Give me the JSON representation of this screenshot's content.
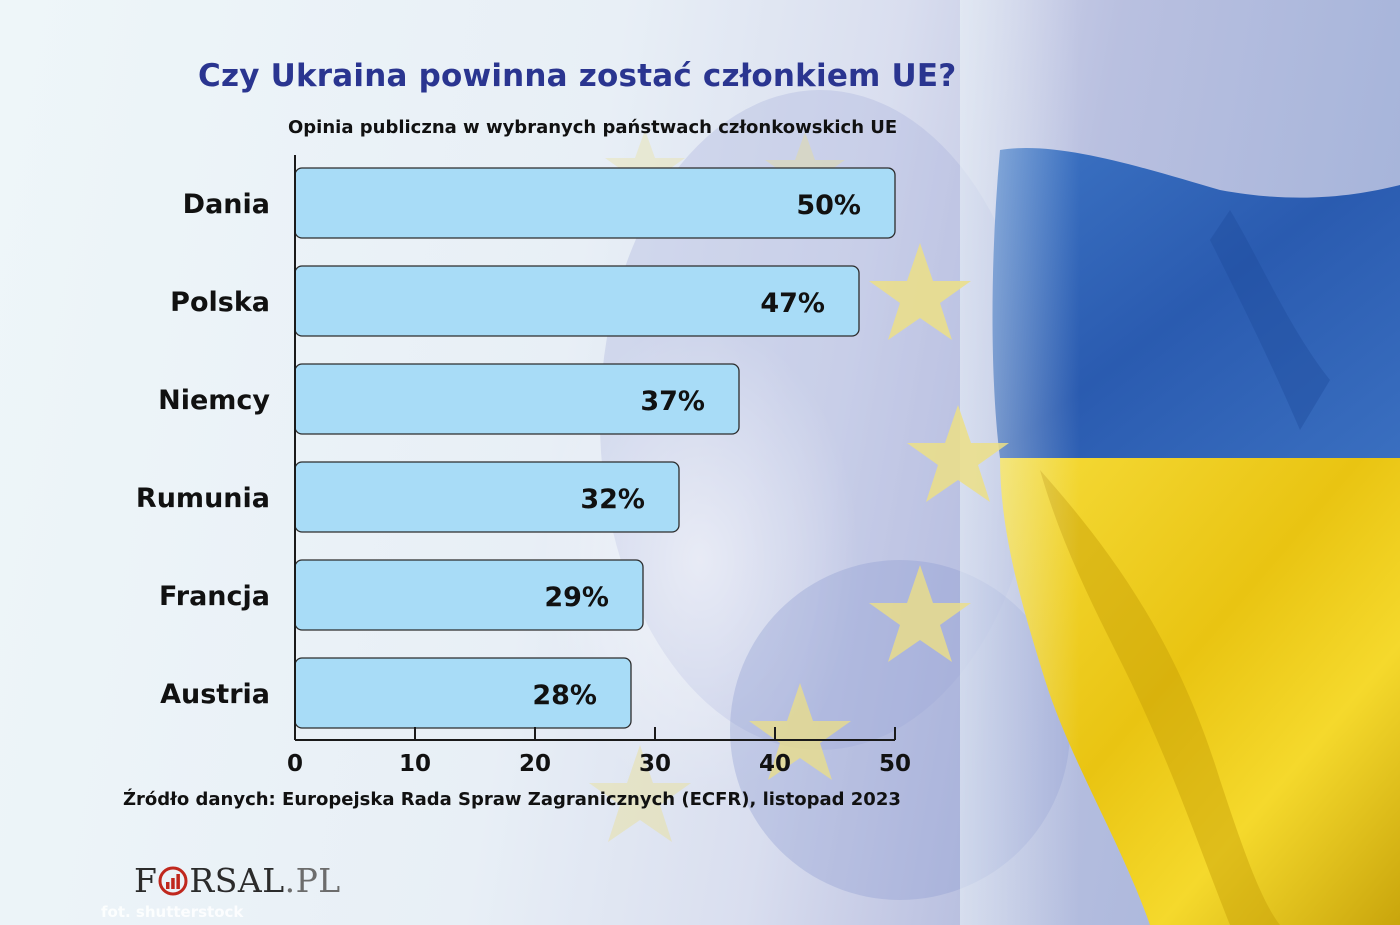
{
  "colors": {
    "bar_fill": "#a8dcf7",
    "bar_stroke": "#2c2c2c",
    "title": "#2a3590",
    "flag_blue": "#2e63b8",
    "flag_yellow": "#f3d21a",
    "eu_star": "#ecdf86"
  },
  "header": {
    "title": "Czy Ukraina powinna zostać członkiem UE?",
    "subtitle": "Opinia publiczna w wybranych państwach członkowskich UE"
  },
  "footer": {
    "source": "Źródło danych: Europejska Rada Spraw Zagranicznych (ECFR), listopad 2023",
    "logo_left": "F",
    "logo_right": "RSAL",
    "logo_ext": ".PL",
    "photo_credit": "fot. shutterstock"
  },
  "chart_data": {
    "type": "bar",
    "orientation": "horizontal",
    "categories": [
      "Dania",
      "Polska",
      "Niemcy",
      "Rumunia",
      "Francja",
      "Austria"
    ],
    "values": [
      50,
      47,
      37,
      32,
      29,
      28
    ],
    "value_labels": [
      "50%",
      "47%",
      "37%",
      "32%",
      "29%",
      "28%"
    ],
    "title": "Czy Ukraina powinna zostać członkiem UE?",
    "subtitle": "Opinia publiczna w wybranych państwach członkowskich UE",
    "xlim": [
      0,
      50
    ],
    "xticks": [
      0,
      10,
      20,
      30,
      40,
      50
    ],
    "grid": false,
    "legend": "none"
  }
}
